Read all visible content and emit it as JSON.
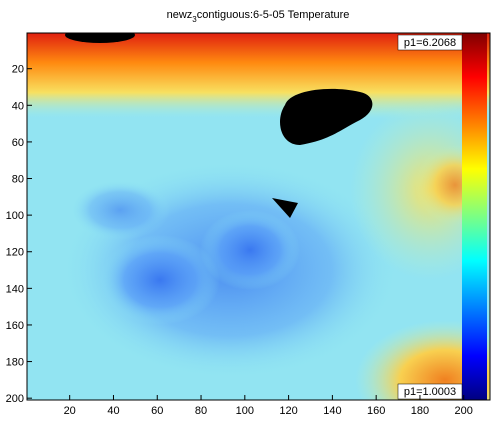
{
  "chart_data": {
    "type": "heatmap",
    "title": {
      "main": "newz",
      "sub": "3",
      "rest": "contiguous:6-5-05 Temperature"
    },
    "xlim": [
      0.5,
      212
    ],
    "xticks": [
      20,
      40,
      60,
      80,
      100,
      120,
      140,
      160,
      180,
      200
    ],
    "ylim": [
      0.5,
      201
    ],
    "yticks": [
      20,
      40,
      60,
      80,
      100,
      120,
      140,
      160,
      180,
      200
    ],
    "y_reversed": true,
    "annotations": [
      "p1=6.2068",
      "p1=1.0003"
    ]
  }
}
